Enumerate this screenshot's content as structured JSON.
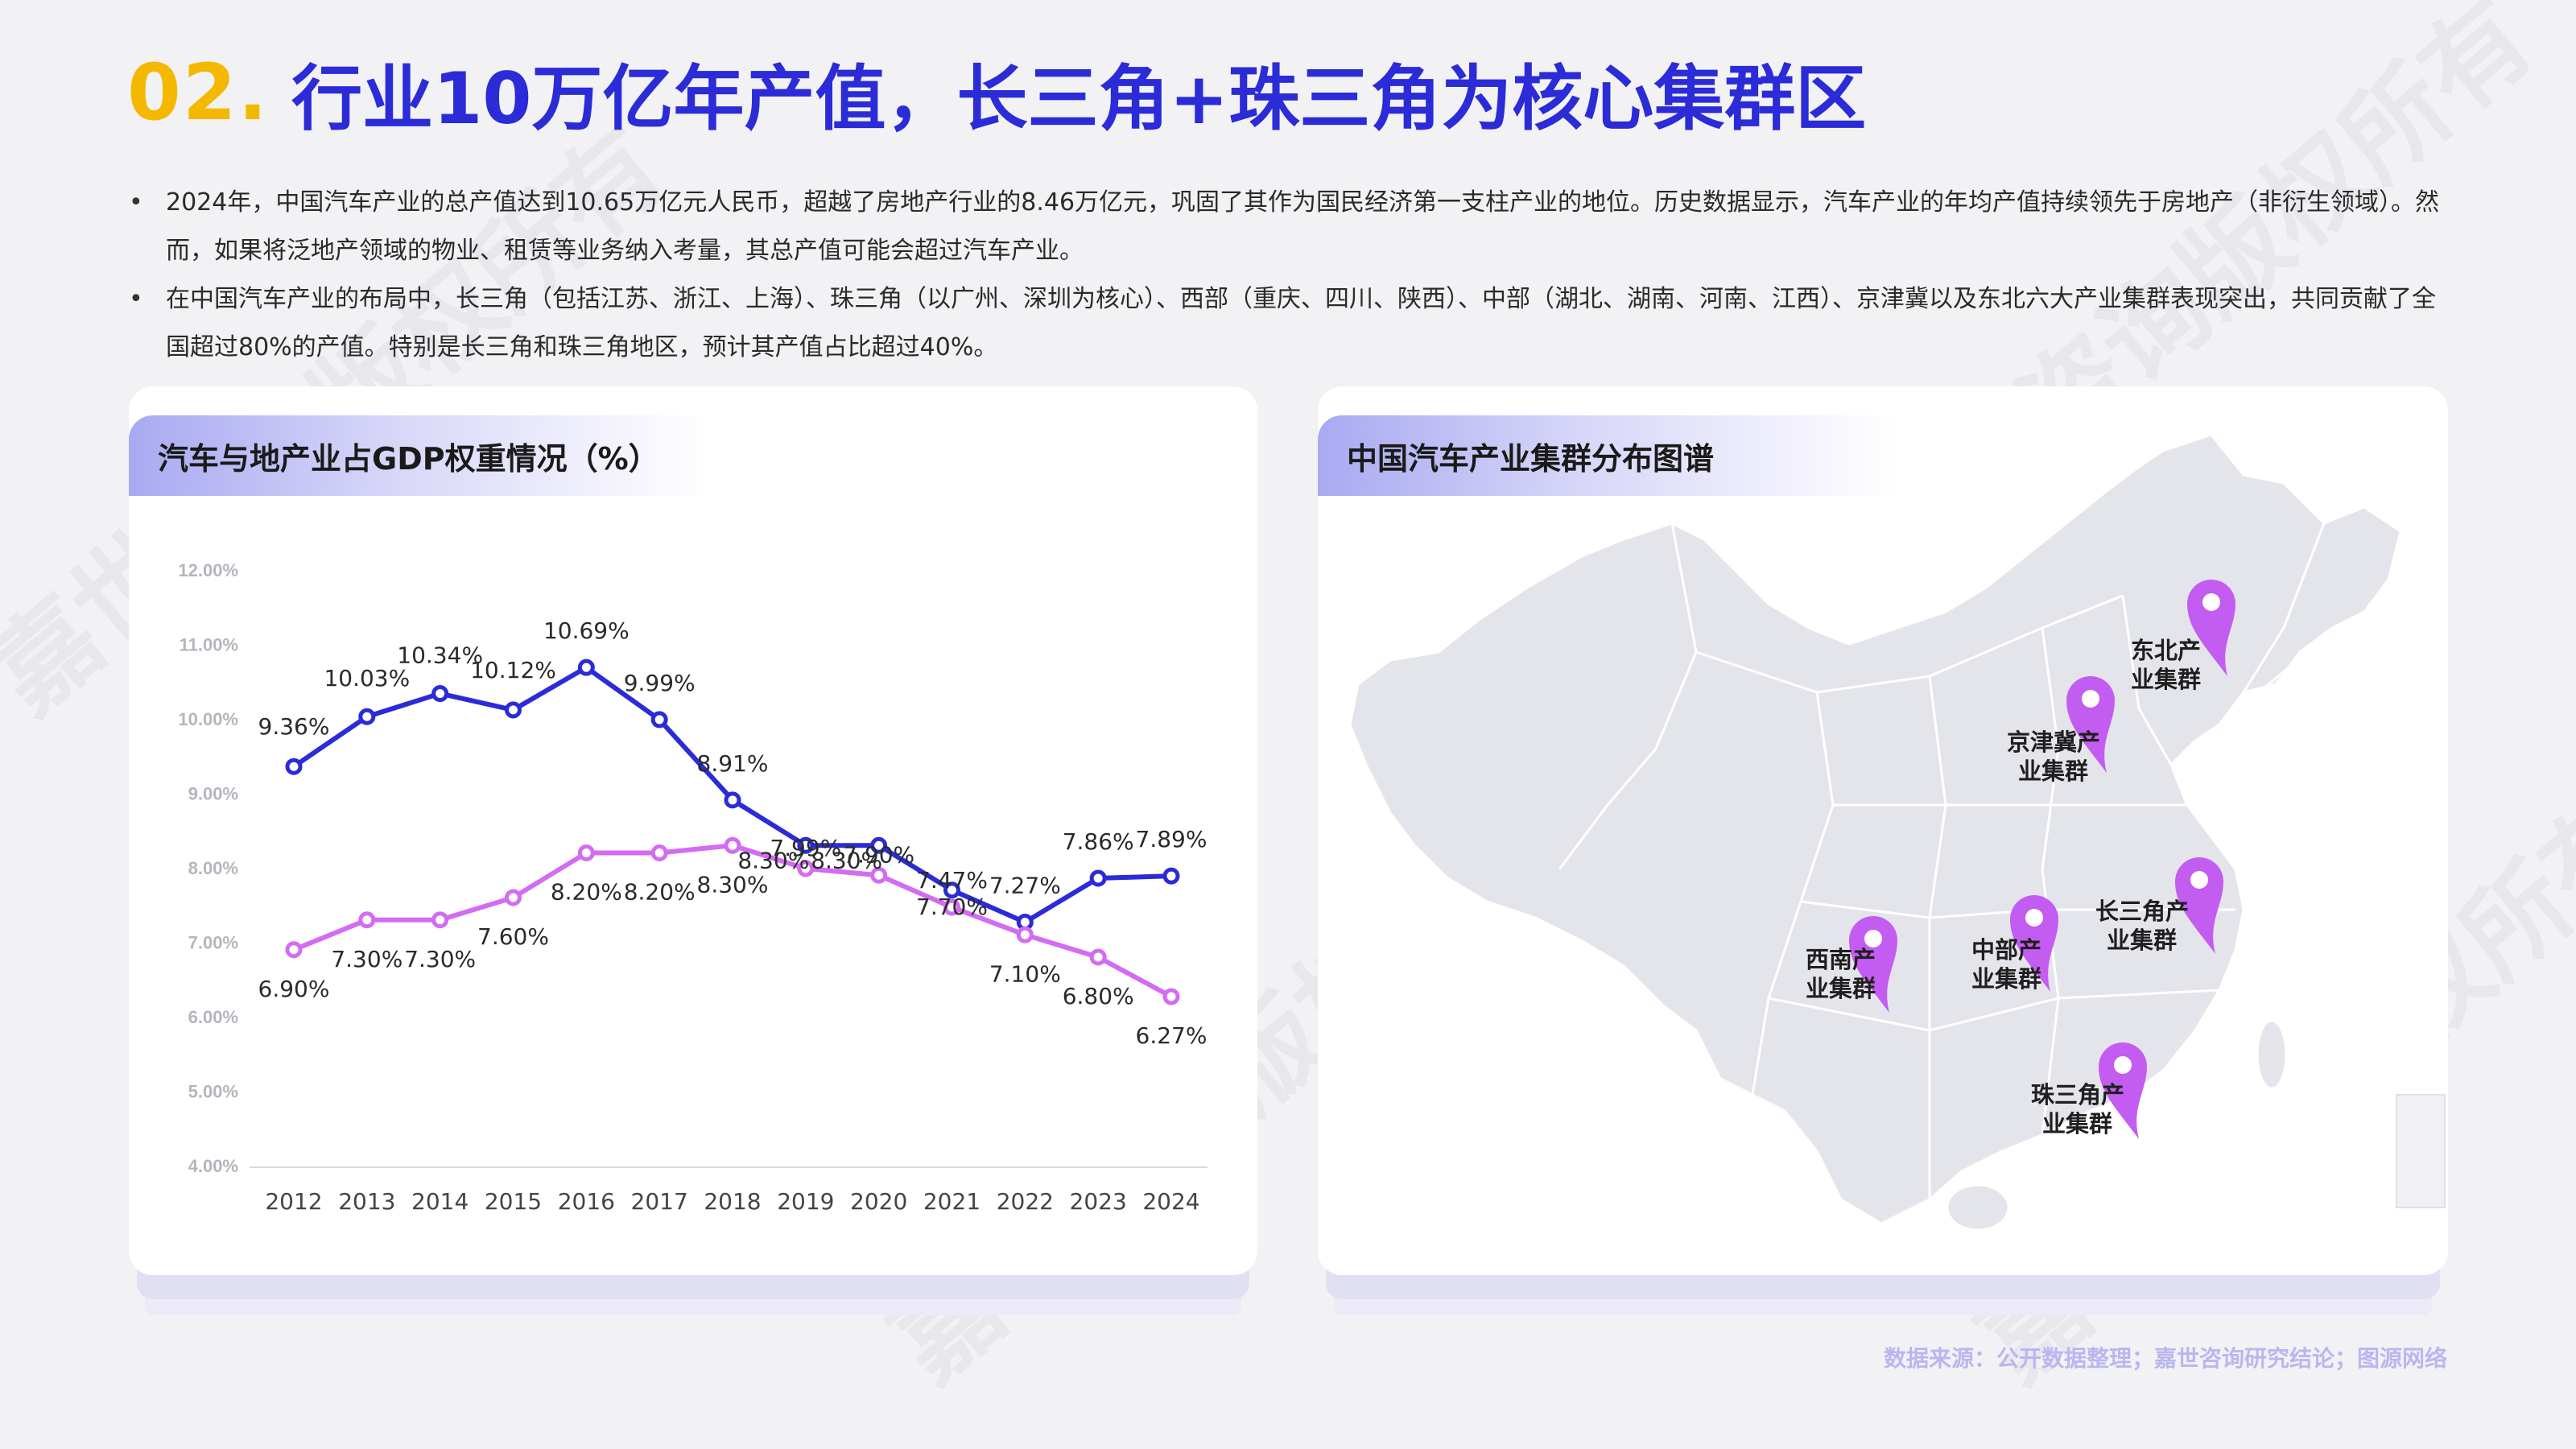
{
  "header": {
    "number": "02.",
    "title": "行业10万亿年产值，长三角+珠三角为核心集群区"
  },
  "bullets": [
    "2024年，中国汽车产业的总产值达到10.65万亿元人民币，超越了房地产行业的8.46万亿元，巩固了其作为国民经济第一支柱产业的地位。历史数据显示，汽车产业的年均产值持续领先于房地产（非衍生领域）。然而，如果将泛地产领域的物业、租赁等业务纳入考量，其总产值可能会超过汽车产业。",
    "在中国汽车产业的布局中，长三角（包括江苏、浙江、上海）、珠三角（以广州、深圳为核心）、西部（重庆、四川、陕西）、中部（湖北、湖南、河南、江西）、京津冀以及东北六大产业集群表现突出，共同贡献了全国超过80%的产值。特别是长三角和珠三角地区，预计其产值占比超过40%。"
  ],
  "left_card": {
    "title": "汽车与地产业占GDP权重情况（%）"
  },
  "right_card": {
    "title": "中国汽车产业集群分布图谱",
    "clusters": [
      {
        "id": "northeast",
        "line1": "东北产",
        "line2": "业集群"
      },
      {
        "id": "jingjinji",
        "line1": "京津冀产",
        "line2": "业集群"
      },
      {
        "id": "yangtze",
        "line1": "长三角产",
        "line2": "业集群"
      },
      {
        "id": "central",
        "line1": "中部产",
        "line2": "业集群"
      },
      {
        "id": "southwest",
        "line1": "西南产",
        "line2": "业集群"
      },
      {
        "id": "pearl",
        "line1": "珠三角产",
        "line2": "业集群"
      }
    ]
  },
  "footer": "数据来源：公开数据整理；嘉世咨询研究结论；图源网络",
  "watermark": "嘉世咨询版权所有",
  "colors": {
    "title_number": "#f5b800",
    "title_text": "#2b2bd8",
    "series_auto": "#2b2bd8",
    "series_realestate": "#d36cf2",
    "pin": "#c35cf0"
  },
  "chart_data": {
    "type": "line",
    "title": "汽车与地产业占GDP权重情况（%）",
    "xlabel": "",
    "ylabel": "",
    "categories": [
      "2012",
      "2013",
      "2014",
      "2015",
      "2016",
      "2017",
      "2018",
      "2019",
      "2020",
      "2021",
      "2022",
      "2023",
      "2024"
    ],
    "ylim": [
      4,
      12
    ],
    "yticks": [
      "4.00%",
      "5.00%",
      "6.00%",
      "7.00%",
      "8.00%",
      "9.00%",
      "10.00%",
      "11.00%",
      "12.00%"
    ],
    "grid": false,
    "legend": "none",
    "series": [
      {
        "values": [
          9.36,
          10.03,
          10.34,
          10.12,
          10.69,
          9.99,
          8.91,
          8.3,
          8.3,
          7.7,
          7.27,
          7.86,
          7.89
        ],
        "labels": [
          "9.36%",
          "10.03%",
          "10.34%",
          "10.12%",
          "10.69%",
          "9.99%",
          "8.91%",
          "8.30%",
          "8.30%",
          "7.70%",
          "7.27%",
          "7.86%",
          "7.89%"
        ]
      },
      {
        "values": [
          6.9,
          7.3,
          7.3,
          7.6,
          8.2,
          8.2,
          8.3,
          7.99,
          7.9,
          7.47,
          7.1,
          6.8,
          6.27
        ],
        "labels": [
          "6.90%",
          "7.30%",
          "7.30%",
          "7.60%",
          "8.20%",
          "8.20%",
          "8.30%",
          "7.99%",
          "7.90%",
          "7.47%",
          "7.10%",
          "6.80%",
          "6.27%"
        ]
      }
    ]
  }
}
